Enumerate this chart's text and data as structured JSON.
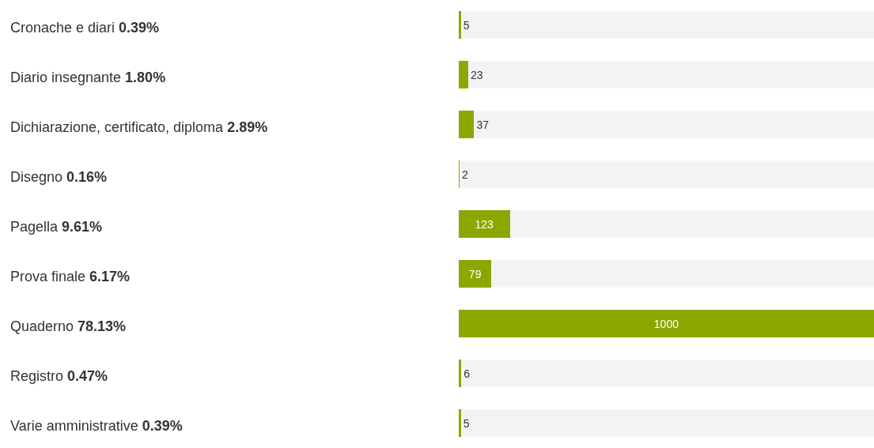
{
  "chart_data": {
    "type": "bar",
    "orientation": "horizontal",
    "xlim": [
      0,
      1000
    ],
    "tick_labels": "y",
    "data_labels": true,
    "categories": [
      "Cronache e diari 0.39%",
      "Diario insegnante 1.80%",
      "Dichiarazione, certificato, diploma 2.89%",
      "Disegno 0.16%",
      "Pagella 9.61%",
      "Prova finale 6.17%",
      "Quaderno 78.13%",
      "Registro 0.47%",
      "Varie amministrative 0.39%"
    ],
    "values": [
      5,
      23,
      37,
      2,
      123,
      79,
      1000,
      6,
      5
    ],
    "color": "#8ca800"
  }
}
